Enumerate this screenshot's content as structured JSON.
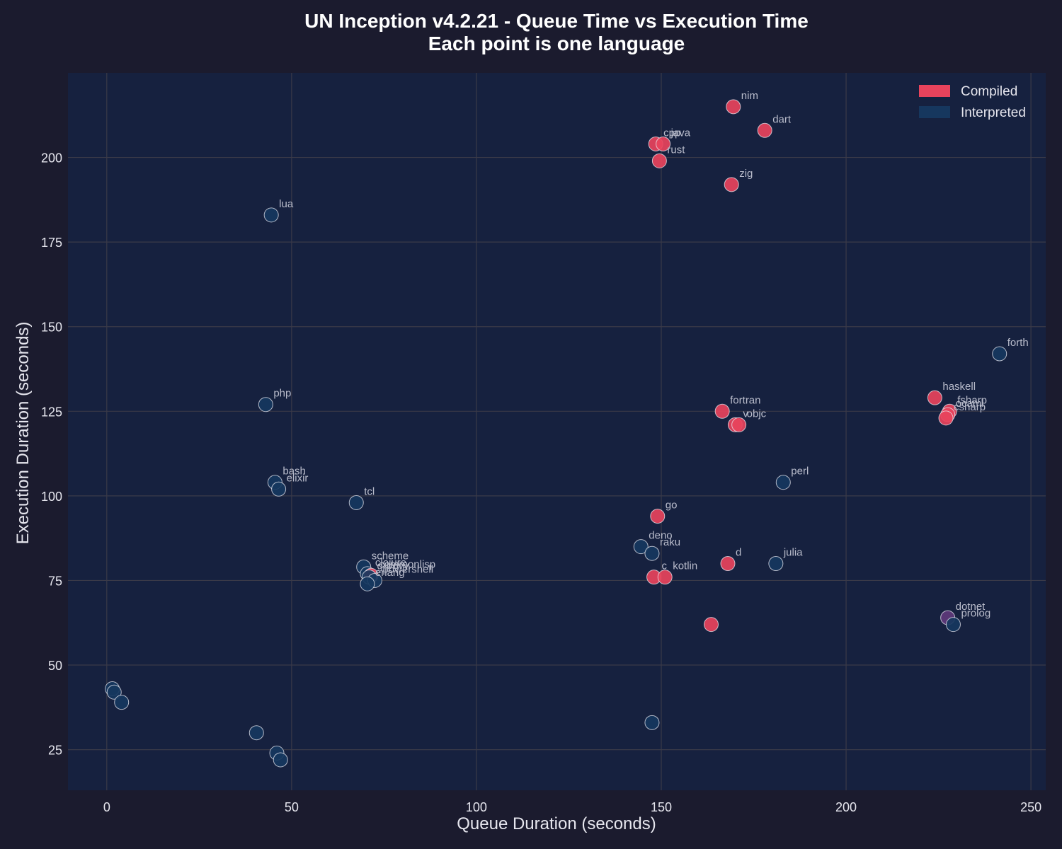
{
  "chart_data": {
    "type": "scatter",
    "title": "UN Inception v4.2.21 - Queue Time vs Execution Time",
    "subtitle": "Each point is one language",
    "xlabel": "Queue Duration (seconds)",
    "ylabel": "Execution Duration (seconds)",
    "xlim": [
      -10.5,
      254
    ],
    "ylim": [
      13,
      225
    ],
    "xticks": [
      "0",
      "50",
      "100",
      "150",
      "200",
      "250"
    ],
    "yticks": [
      "25",
      "50",
      "75",
      "100",
      "125",
      "150",
      "175",
      "200"
    ],
    "grid": true,
    "legend": {
      "position": "top-right",
      "entries": [
        {
          "label": "Compiled",
          "color": "#e8435c"
        },
        {
          "label": "Interpreted",
          "color": "#16375e"
        }
      ]
    },
    "colors": {
      "compiled": "#e8435c",
      "interpreted": "#16375e",
      "mixed": "#5e3a7a",
      "background": "#1b1b2e",
      "plot_area": "#16213f"
    },
    "points": [
      {
        "label": "nim",
        "x": 169.5,
        "y": 215,
        "group": "compiled"
      },
      {
        "label": "dart",
        "x": 178,
        "y": 208,
        "group": "compiled"
      },
      {
        "label": "cpp",
        "x": 148.5,
        "y": 204,
        "group": "compiled"
      },
      {
        "label": "java",
        "x": 150.5,
        "y": 204,
        "group": "compiled"
      },
      {
        "label": "rust",
        "x": 149.5,
        "y": 199,
        "group": "compiled"
      },
      {
        "label": "zig",
        "x": 169,
        "y": 192,
        "group": "compiled"
      },
      {
        "label": "lua",
        "x": 44.5,
        "y": 183,
        "group": "interpreted"
      },
      {
        "label": "forth",
        "x": 241.5,
        "y": 142,
        "group": "interpreted"
      },
      {
        "label": "haskell",
        "x": 224,
        "y": 129,
        "group": "compiled"
      },
      {
        "label": "php",
        "x": 43,
        "y": 127,
        "group": "interpreted"
      },
      {
        "label": "fortran",
        "x": 166.5,
        "y": 125,
        "group": "compiled"
      },
      {
        "label": "fsharp",
        "x": 228,
        "y": 125,
        "group": "compiled"
      },
      {
        "label": "ocaml",
        "x": 227.5,
        "y": 124,
        "group": "compiled"
      },
      {
        "label": "csharp",
        "x": 227,
        "y": 123,
        "group": "compiled"
      },
      {
        "label": "v",
        "x": 170,
        "y": 121,
        "group": "compiled"
      },
      {
        "label": "objc",
        "x": 171,
        "y": 121,
        "group": "compiled"
      },
      {
        "label": "bash",
        "x": 45.5,
        "y": 104,
        "group": "interpreted"
      },
      {
        "label": "perl",
        "x": 183,
        "y": 104,
        "group": "interpreted"
      },
      {
        "label": "elixir",
        "x": 46.5,
        "y": 102,
        "group": "interpreted"
      },
      {
        "label": "tcl",
        "x": 67.5,
        "y": 98,
        "group": "interpreted"
      },
      {
        "label": "go",
        "x": 149,
        "y": 94,
        "group": "compiled"
      },
      {
        "label": "deno",
        "x": 144.5,
        "y": 85,
        "group": "interpreted"
      },
      {
        "label": "raku",
        "x": 147.5,
        "y": 83,
        "group": "interpreted"
      },
      {
        "label": "d",
        "x": 168,
        "y": 80,
        "group": "compiled"
      },
      {
        "label": "julia",
        "x": 181,
        "y": 80,
        "group": "interpreted"
      },
      {
        "label": "scheme",
        "x": 69.5,
        "y": 79,
        "group": "interpreted"
      },
      {
        "label": "clojure",
        "x": 70.5,
        "y": 77,
        "group": "interpreted"
      },
      {
        "label": "commonlisp",
        "x": 71.5,
        "y": 76.5,
        "group": "compiled"
      },
      {
        "label": "groovy",
        "x": 71,
        "y": 76,
        "group": "interpreted"
      },
      {
        "label": "powershell",
        "x": 72.5,
        "y": 75,
        "group": "interpreted"
      },
      {
        "label": "erlang",
        "x": 70.5,
        "y": 74,
        "group": "interpreted"
      },
      {
        "label": "c",
        "x": 148,
        "y": 76,
        "group": "compiled"
      },
      {
        "label": "kotlin",
        "x": 151,
        "y": 76,
        "group": "compiled"
      },
      {
        "label": "dotnet",
        "x": 227.5,
        "y": 64,
        "group": "mixed"
      },
      {
        "label": "prolog",
        "x": 229,
        "y": 62,
        "group": "interpreted"
      },
      {
        "label": "",
        "x": 163.5,
        "y": 62,
        "group": "compiled"
      },
      {
        "label": "",
        "x": 1.5,
        "y": 43,
        "group": "interpreted"
      },
      {
        "label": "",
        "x": 2,
        "y": 42,
        "group": "interpreted"
      },
      {
        "label": "",
        "x": 4,
        "y": 39,
        "group": "interpreted"
      },
      {
        "label": "",
        "x": 40.5,
        "y": 30,
        "group": "interpreted"
      },
      {
        "label": "",
        "x": 147.5,
        "y": 33,
        "group": "interpreted"
      },
      {
        "label": "",
        "x": 46,
        "y": 24,
        "group": "interpreted"
      },
      {
        "label": "",
        "x": 47,
        "y": 22,
        "group": "interpreted"
      }
    ]
  }
}
